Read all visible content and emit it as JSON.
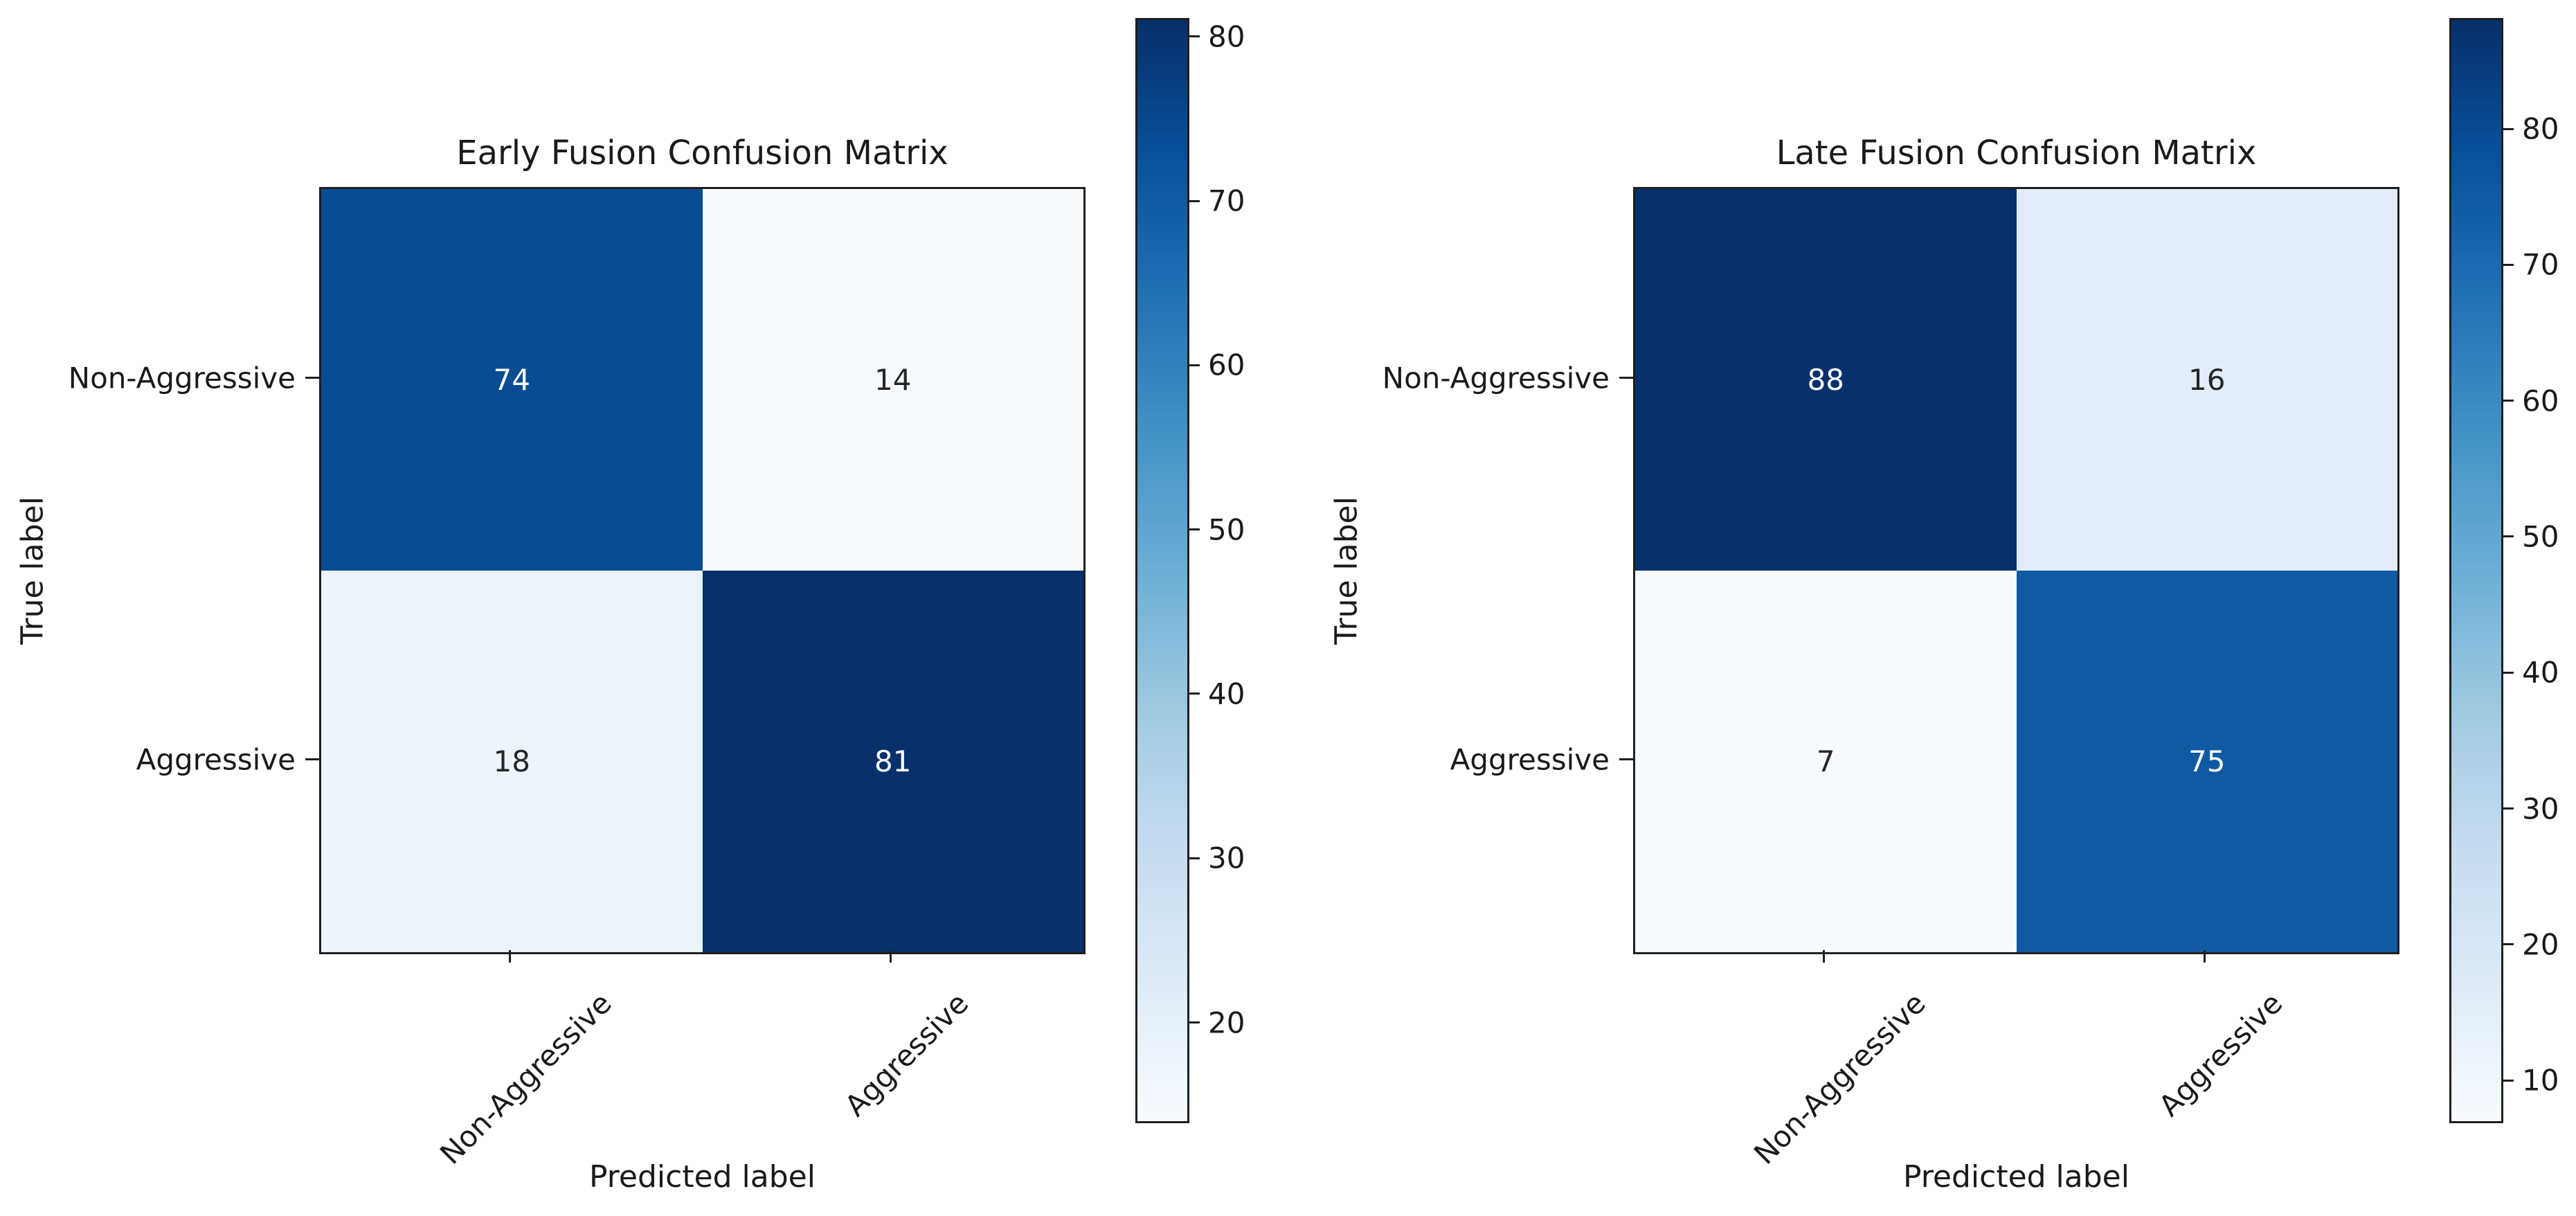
{
  "styles": {
    "background": "#ffffff",
    "text_color": "#1a1a1a",
    "spine_color": "#1f1f1f",
    "cell_text_light": "#ffffff",
    "cell_text_dark": "#262626"
  },
  "colormap_anchors": [
    "#f7fbff",
    "#deebf7",
    "#c6dbef",
    "#9ecae1",
    "#6baed6",
    "#4292c6",
    "#2171b5",
    "#08519c",
    "#08306b"
  ],
  "chart_data": [
    {
      "type": "heatmap",
      "title": "Early Fusion Confusion Matrix",
      "xlabel": "Predicted label",
      "ylabel": "True label",
      "categories": [
        "Non-Aggressive",
        "Aggressive"
      ],
      "matrix": [
        [
          74,
          14
        ],
        [
          18,
          81
        ]
      ],
      "vmin": 14,
      "vmax": 81,
      "colorbar_ticks": [
        80,
        70,
        60,
        50,
        40,
        30,
        20
      ],
      "colormap": "Blues",
      "legend_position": "right-colorbar",
      "grid": false
    },
    {
      "type": "heatmap",
      "title": "Late Fusion Confusion Matrix",
      "xlabel": "Predicted label",
      "ylabel": "True label",
      "categories": [
        "Non-Aggressive",
        "Aggressive"
      ],
      "matrix": [
        [
          88,
          16
        ],
        [
          7,
          75
        ]
      ],
      "vmin": 7,
      "vmax": 88,
      "colorbar_ticks": [
        80,
        70,
        60,
        50,
        40,
        30,
        20,
        10
      ],
      "colormap": "Blues",
      "legend_position": "right-colorbar",
      "grid": false
    }
  ]
}
